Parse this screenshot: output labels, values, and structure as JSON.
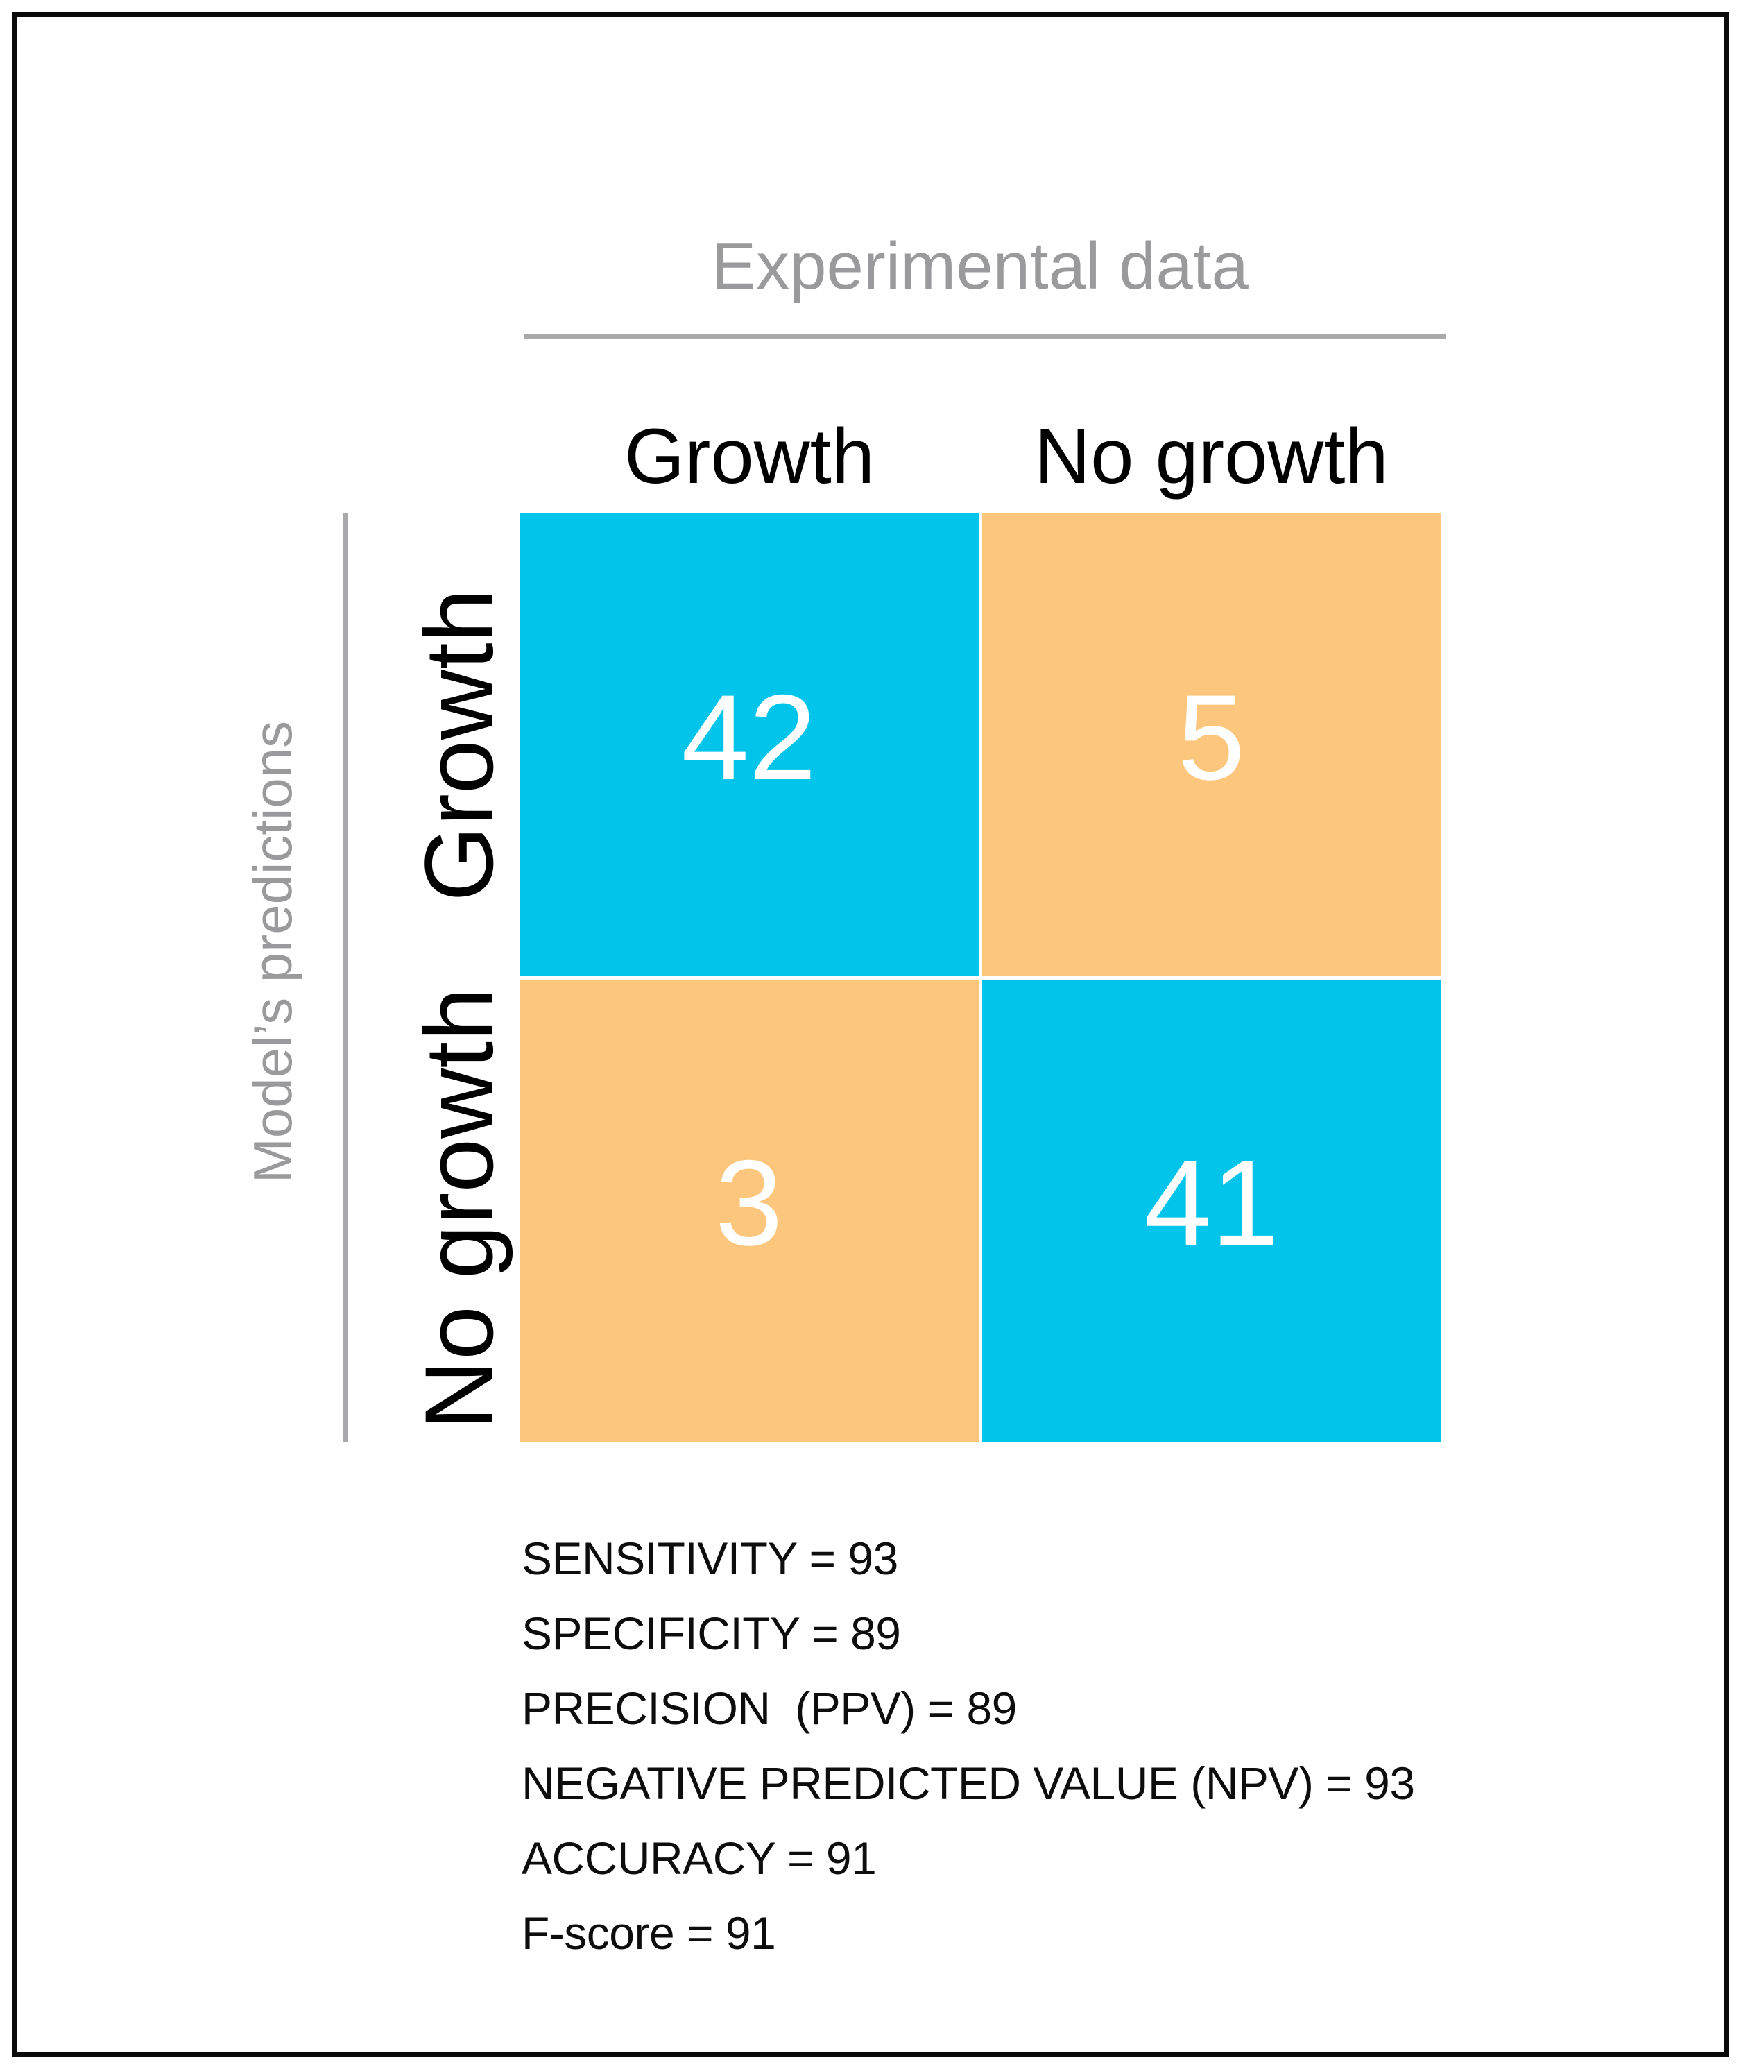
{
  "figure": {
    "title": "Experimental data",
    "y_axis_title": "Model’s predictions"
  },
  "chart_data": {
    "type": "heatmap",
    "subtype": "confusion-matrix",
    "title": "Experimental data",
    "x_axis_label": "Experimental data",
    "y_axis_label": "Model’s predictions",
    "col_labels": [
      "Growth",
      "No growth"
    ],
    "row_labels": [
      "Growth",
      "No growth"
    ],
    "matrix": [
      [
        42,
        5
      ],
      [
        3,
        41
      ]
    ],
    "cell_color_map": [
      [
        "cyan",
        "orange"
      ],
      [
        "orange",
        "cyan"
      ]
    ],
    "legend": "none",
    "grid": "off",
    "metrics": [
      {
        "label": "SENSITIVITY",
        "value": 93,
        "display": "SENSITIVITY = 93"
      },
      {
        "label": "SPECIFICITY",
        "value": 89,
        "display": "SPECIFICITY = 89"
      },
      {
        "label": "PRECISION (PPV)",
        "value": 89,
        "display": "PRECISION  (PPV) = 89"
      },
      {
        "label": "NEGATIVE PREDICTED VALUE (NPV)",
        "value": 93,
        "display": "NEGATIVE PREDICTED VALUE (NPV) = 93"
      },
      {
        "label": "ACCURACY",
        "value": 91,
        "display": "ACCURACY = 91"
      },
      {
        "label": "F-score",
        "value": 91,
        "display": "F-score = 91"
      }
    ]
  },
  "colors": {
    "cyan": "#00c4ea",
    "orange": "#fcc67d",
    "gray_text": "#9a9a9c",
    "gray_line": "#a9a9ab",
    "cell_value_text": "#ffffff",
    "black_text": "#0d0d0d",
    "frame_border": "#0a0a0a"
  }
}
